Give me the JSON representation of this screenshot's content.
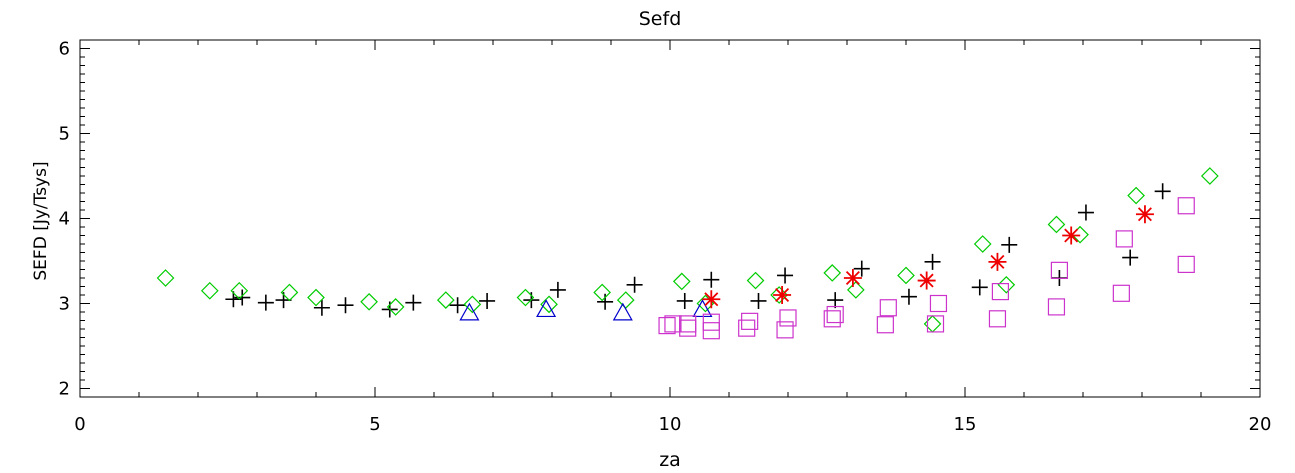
{
  "chart_data": {
    "type": "scatter",
    "title": "Sefd",
    "xlabel": "za",
    "ylabel": "SEFD [Jy/Tsys]",
    "xlim": [
      0,
      20
    ],
    "ylim": [
      1.9,
      6.1
    ],
    "xticks": [
      0,
      5,
      10,
      15,
      20
    ],
    "yticks": [
      2,
      3,
      4,
      5,
      6
    ],
    "grid": false,
    "series": [
      {
        "marker": "plus",
        "color": "#000000",
        "points": [
          [
            2.6,
            3.05
          ],
          [
            2.75,
            3.07
          ],
          [
            3.15,
            3.01
          ],
          [
            3.45,
            3.04
          ],
          [
            4.1,
            2.95
          ],
          [
            4.5,
            2.98
          ],
          [
            5.25,
            2.93
          ],
          [
            5.65,
            3.01
          ],
          [
            6.4,
            2.98
          ],
          [
            6.9,
            3.03
          ],
          [
            7.65,
            3.04
          ],
          [
            8.1,
            3.16
          ],
          [
            8.9,
            3.02
          ],
          [
            9.4,
            3.22
          ],
          [
            10.25,
            3.03
          ],
          [
            10.7,
            3.28
          ],
          [
            11.5,
            3.03
          ],
          [
            11.95,
            3.33
          ],
          [
            12.8,
            3.04
          ],
          [
            13.25,
            3.41
          ],
          [
            14.05,
            3.08
          ],
          [
            14.45,
            3.49
          ],
          [
            15.25,
            3.19
          ],
          [
            15.75,
            3.69
          ],
          [
            16.6,
            3.3
          ],
          [
            17.05,
            4.07
          ],
          [
            17.8,
            3.54
          ],
          [
            18.35,
            4.32
          ]
        ]
      },
      {
        "marker": "diamond",
        "color": "#00cc00",
        "points": [
          [
            1.45,
            3.3
          ],
          [
            2.2,
            3.15
          ],
          [
            2.7,
            3.15
          ],
          [
            3.55,
            3.13
          ],
          [
            4.0,
            3.07
          ],
          [
            4.9,
            3.02
          ],
          [
            5.35,
            2.96
          ],
          [
            6.2,
            3.04
          ],
          [
            6.65,
            2.99
          ],
          [
            7.55,
            3.07
          ],
          [
            7.95,
            2.99
          ],
          [
            8.85,
            3.13
          ],
          [
            9.25,
            3.04
          ],
          [
            10.2,
            3.26
          ],
          [
            10.6,
            3.0
          ],
          [
            11.45,
            3.27
          ],
          [
            11.85,
            3.1
          ],
          [
            12.75,
            3.36
          ],
          [
            13.15,
            3.16
          ],
          [
            14.0,
            3.33
          ],
          [
            14.45,
            2.76
          ],
          [
            15.3,
            3.7
          ],
          [
            15.7,
            3.22
          ],
          [
            16.55,
            3.93
          ],
          [
            16.95,
            3.81
          ],
          [
            17.9,
            4.27
          ],
          [
            19.15,
            4.5
          ]
        ]
      },
      {
        "marker": "triangle",
        "color": "#0000cc",
        "points": [
          [
            6.6,
            2.89
          ],
          [
            7.9,
            2.93
          ],
          [
            9.2,
            2.89
          ],
          [
            10.55,
            2.93
          ]
        ]
      },
      {
        "marker": "square",
        "color": "#cc33cc",
        "points": [
          [
            9.95,
            2.74
          ],
          [
            10.05,
            2.76
          ],
          [
            10.3,
            2.71
          ],
          [
            10.3,
            2.76
          ],
          [
            10.7,
            2.68
          ],
          [
            10.7,
            2.78
          ],
          [
            11.3,
            2.71
          ],
          [
            11.35,
            2.79
          ],
          [
            11.95,
            2.69
          ],
          [
            12.0,
            2.83
          ],
          [
            12.75,
            2.82
          ],
          [
            12.8,
            2.87
          ],
          [
            13.65,
            2.75
          ],
          [
            13.7,
            2.95
          ],
          [
            14.5,
            2.76
          ],
          [
            14.55,
            3.0
          ],
          [
            15.55,
            2.82
          ],
          [
            15.6,
            3.14
          ],
          [
            16.55,
            2.96
          ],
          [
            16.6,
            3.39
          ],
          [
            17.65,
            3.12
          ],
          [
            17.7,
            3.76
          ],
          [
            18.75,
            3.46
          ],
          [
            18.75,
            4.15
          ]
        ]
      },
      {
        "marker": "asterisk",
        "color": "#ee0000",
        "points": [
          [
            10.7,
            3.05
          ],
          [
            11.9,
            3.1
          ],
          [
            13.1,
            3.3
          ],
          [
            14.35,
            3.27
          ],
          [
            15.55,
            3.49
          ],
          [
            16.8,
            3.8
          ],
          [
            18.05,
            4.05
          ]
        ]
      }
    ]
  }
}
